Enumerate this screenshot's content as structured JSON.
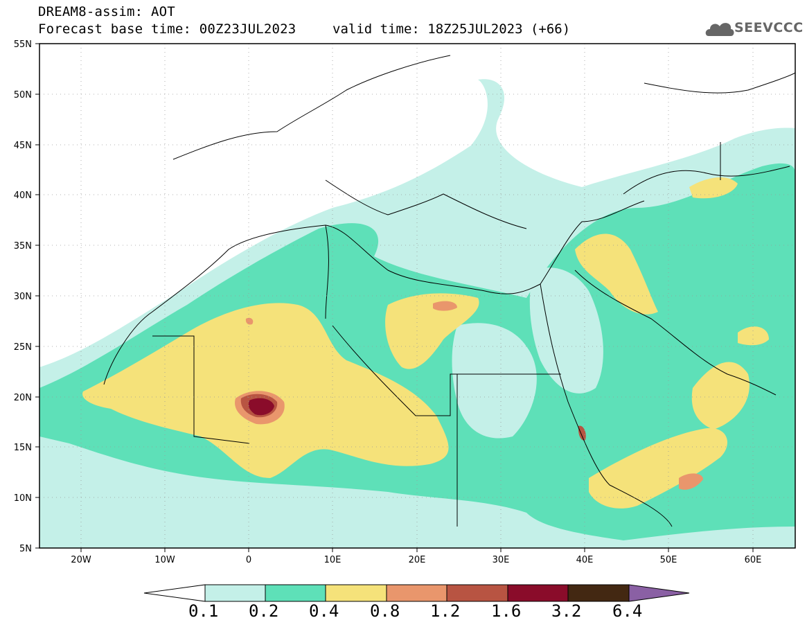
{
  "title": {
    "line1": "DREAM8-assim: AOT",
    "line2": "Forecast base time: 00Z23JUL2023",
    "valid": "valid time: 18Z25JUL2023 (+66)"
  },
  "logo": {
    "text": "SEEVCCC",
    "icon": "cloud-icon"
  },
  "axes": {
    "x_ticks": [
      "20W",
      "10W",
      "0",
      "10E",
      "20E",
      "30E",
      "40E",
      "50E",
      "60E"
    ],
    "y_ticks": [
      "55N",
      "50N",
      "45N",
      "40N",
      "35N",
      "30N",
      "25N",
      "20N",
      "15N",
      "10N",
      "5N"
    ]
  },
  "colorbar": {
    "labels": [
      "0.1",
      "0.2",
      "0.4",
      "0.8",
      "1.2",
      "1.6",
      "3.2",
      "6.4"
    ],
    "colors": [
      "#c4f0e8",
      "#5ee0b8",
      "#f5e27a",
      "#e9966c",
      "#b85442",
      "#8a0c2a",
      "#432812",
      "#8a60a4"
    ]
  },
  "map": {
    "extent": {
      "lon_min": -25,
      "lon_max": 65,
      "lat_min": 5,
      "lat_max": 55
    },
    "field": "Aerosol Optical Thickness"
  }
}
